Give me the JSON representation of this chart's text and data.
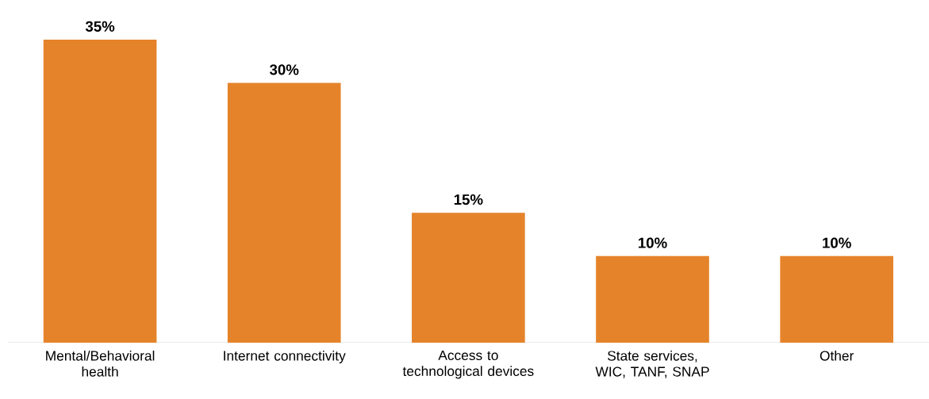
{
  "chart_data": {
    "type": "bar",
    "categories": [
      "Mental/Behavioral health",
      "Internet connectivity",
      "Access to technological devices",
      "State services, WIC, TANF, SNAP",
      "Other"
    ],
    "values": [
      35,
      30,
      15,
      10,
      10
    ],
    "value_labels": [
      "35%",
      "30%",
      "15%",
      "10%",
      "10%"
    ],
    "color": "#e5832a"
  }
}
